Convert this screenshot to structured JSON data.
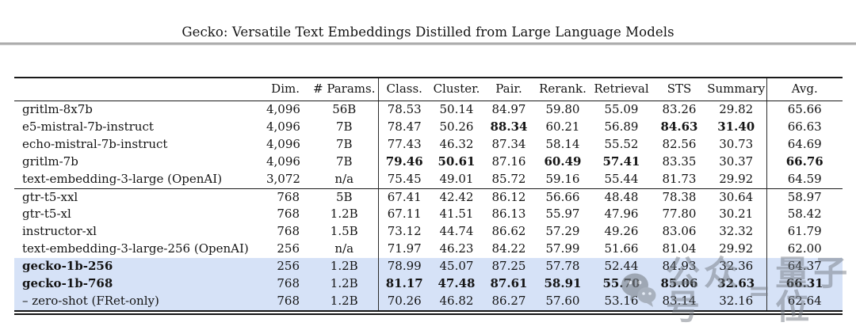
{
  "page": {
    "title": "Gecko: Versatile Text Embeddings Distilled from Large Language Models"
  },
  "table": {
    "columns": [
      "",
      "Dim.",
      "# Params.",
      "Class.",
      "Cluster.",
      "Pair.",
      "Rerank.",
      "Retrieval",
      "STS",
      "Summary",
      "Avg."
    ],
    "groups": [
      {
        "highlight": false,
        "rows": [
          {
            "model": "gritlm-8x7b",
            "model_bold": false,
            "dim": "4,096",
            "params": "56B",
            "values": [
              "78.53",
              "50.14",
              "84.97",
              "59.80",
              "55.09",
              "83.26",
              "29.82",
              "65.66"
            ],
            "bold": []
          },
          {
            "model": "e5-mistral-7b-instruct",
            "model_bold": false,
            "dim": "4,096",
            "params": "7B",
            "values": [
              "78.47",
              "50.26",
              "88.34",
              "60.21",
              "56.89",
              "84.63",
              "31.40",
              "66.63"
            ],
            "bold": [
              2,
              5,
              6
            ]
          },
          {
            "model": "echo-mistral-7b-instruct",
            "model_bold": false,
            "dim": "4,096",
            "params": "7B",
            "values": [
              "77.43",
              "46.32",
              "87.34",
              "58.14",
              "55.52",
              "82.56",
              "30.73",
              "64.69"
            ],
            "bold": []
          },
          {
            "model": "gritlm-7b",
            "model_bold": false,
            "dim": "4,096",
            "params": "7B",
            "values": [
              "79.46",
              "50.61",
              "87.16",
              "60.49",
              "57.41",
              "83.35",
              "30.37",
              "66.76"
            ],
            "bold": [
              0,
              1,
              3,
              4,
              7
            ]
          },
          {
            "model": "text-embedding-3-large (OpenAI)",
            "model_bold": false,
            "dim": "3,072",
            "params": "n/a",
            "values": [
              "75.45",
              "49.01",
              "85.72",
              "59.16",
              "55.44",
              "81.73",
              "29.92",
              "64.59"
            ],
            "bold": []
          }
        ]
      },
      {
        "highlight": false,
        "rows": [
          {
            "model": "gtr-t5-xxl",
            "model_bold": false,
            "dim": "768",
            "params": "5B",
            "values": [
              "67.41",
              "42.42",
              "86.12",
              "56.66",
              "48.48",
              "78.38",
              "30.64",
              "58.97"
            ],
            "bold": []
          },
          {
            "model": "gtr-t5-xl",
            "model_bold": false,
            "dim": "768",
            "params": "1.2B",
            "values": [
              "67.11",
              "41.51",
              "86.13",
              "55.97",
              "47.96",
              "77.80",
              "30.21",
              "58.42"
            ],
            "bold": []
          },
          {
            "model": "instructor-xl",
            "model_bold": false,
            "dim": "768",
            "params": "1.5B",
            "values": [
              "73.12",
              "44.74",
              "86.62",
              "57.29",
              "49.26",
              "83.06",
              "32.32",
              "61.79"
            ],
            "bold": []
          },
          {
            "model": "text-embedding-3-large-256 (OpenAI)",
            "model_bold": false,
            "dim": "256",
            "params": "n/a",
            "values": [
              "71.97",
              "46.23",
              "84.22",
              "57.99",
              "51.66",
              "81.04",
              "29.92",
              "62.00"
            ],
            "bold": []
          }
        ]
      },
      {
        "highlight": true,
        "rows": [
          {
            "model": "gecko-1b-256",
            "model_bold": true,
            "dim": "256",
            "params": "1.2B",
            "values": [
              "78.99",
              "45.07",
              "87.25",
              "57.78",
              "52.44",
              "84.93",
              "32.36",
              "64.37"
            ],
            "bold": []
          },
          {
            "model": "gecko-1b-768",
            "model_bold": true,
            "dim": "768",
            "params": "1.2B",
            "values": [
              "81.17",
              "47.48",
              "87.61",
              "58.91",
              "55.70",
              "85.06",
              "32.63",
              "66.31"
            ],
            "bold": [
              0,
              1,
              2,
              3,
              4,
              5,
              6,
              7
            ]
          },
          {
            "model": "– zero-shot (FRet-only)",
            "model_bold": false,
            "dim": "768",
            "params": "1.2B",
            "values": [
              "70.26",
              "46.82",
              "86.27",
              "57.60",
              "53.16",
              "83.14",
              "32.16",
              "62.64"
            ],
            "bold": []
          }
        ]
      }
    ]
  },
  "watermark": {
    "prefix": "公众号",
    "separator": "=",
    "name": "量子位"
  },
  "colors": {
    "highlight_row": "#d6e2f7",
    "watermark_gray": "#757c84"
  }
}
